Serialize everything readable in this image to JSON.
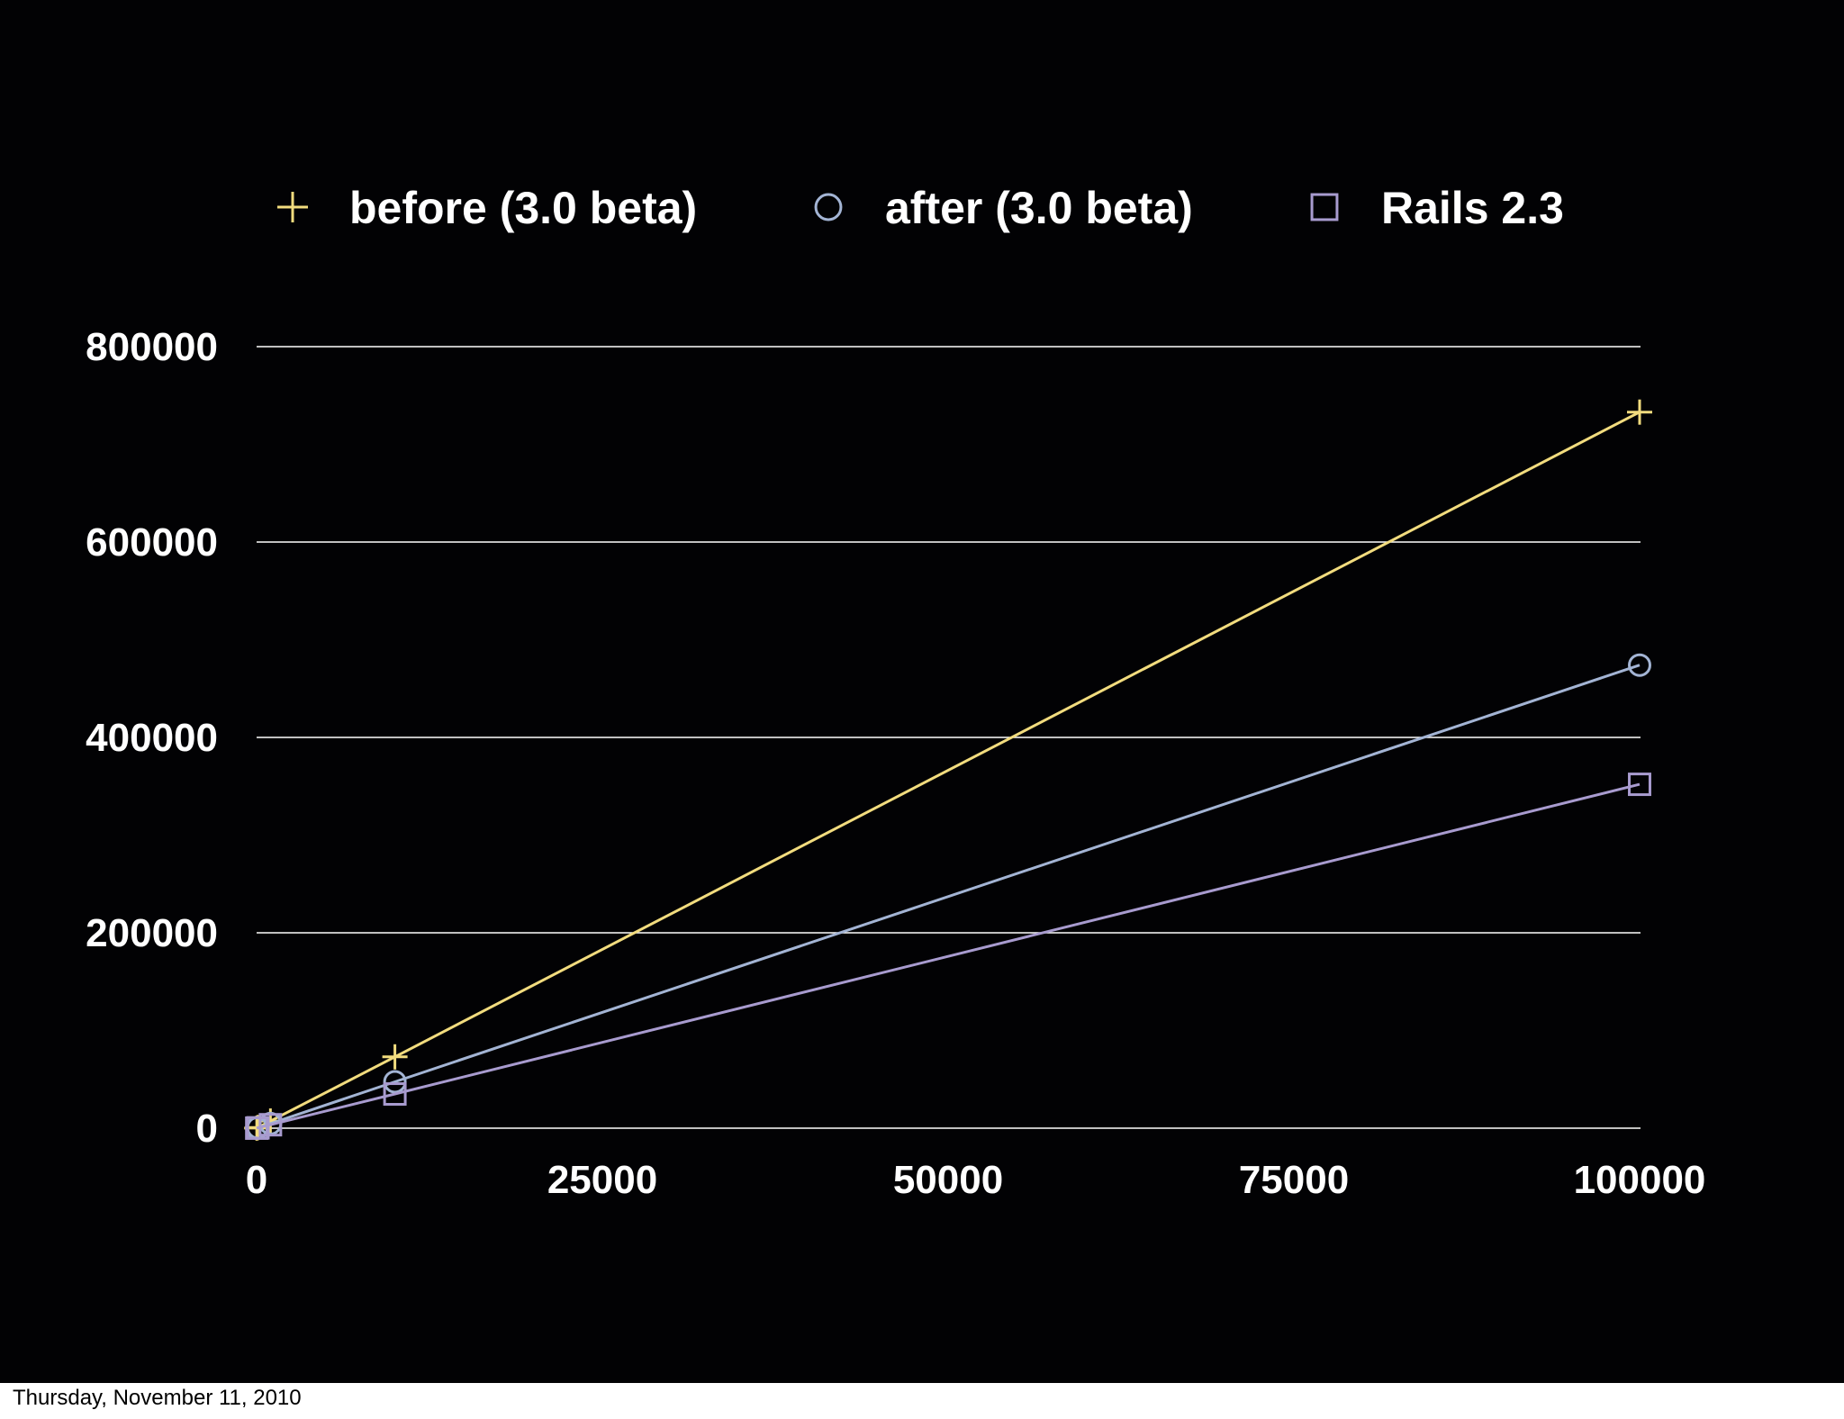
{
  "footer": {
    "date": "Thursday, November 11, 2010"
  },
  "chart_data": {
    "type": "line",
    "title": "",
    "xlabel": "",
    "ylabel": "",
    "xlim": [
      0,
      100000
    ],
    "ylim": [
      0,
      800000
    ],
    "x_ticks": [
      "0",
      "25000",
      "50000",
      "75000",
      "100000"
    ],
    "y_ticks": [
      "0",
      "200000",
      "400000",
      "600000",
      "800000"
    ],
    "grid": "horizontal",
    "legend_position": "top",
    "series": [
      {
        "name": "before (3.0 beta)",
        "marker": "plus",
        "color": "#f2dc7e",
        "points": [
          [
            10,
            100
          ],
          [
            100,
            700
          ],
          [
            1000,
            7300
          ],
          [
            10000,
            73000
          ],
          [
            100000,
            733000
          ]
        ]
      },
      {
        "name": "after (3.0 beta)",
        "marker": "circle",
        "color": "#a3b4d4",
        "points": [
          [
            10,
            50
          ],
          [
            100,
            470
          ],
          [
            1000,
            4700
          ],
          [
            10000,
            47500
          ],
          [
            100000,
            474000
          ]
        ]
      },
      {
        "name": "Rails 2.3",
        "marker": "square",
        "color": "#a89bcf",
        "points": [
          [
            10,
            40
          ],
          [
            100,
            350
          ],
          [
            1000,
            3500
          ],
          [
            10000,
            35000
          ],
          [
            100000,
            352000
          ]
        ]
      }
    ]
  }
}
